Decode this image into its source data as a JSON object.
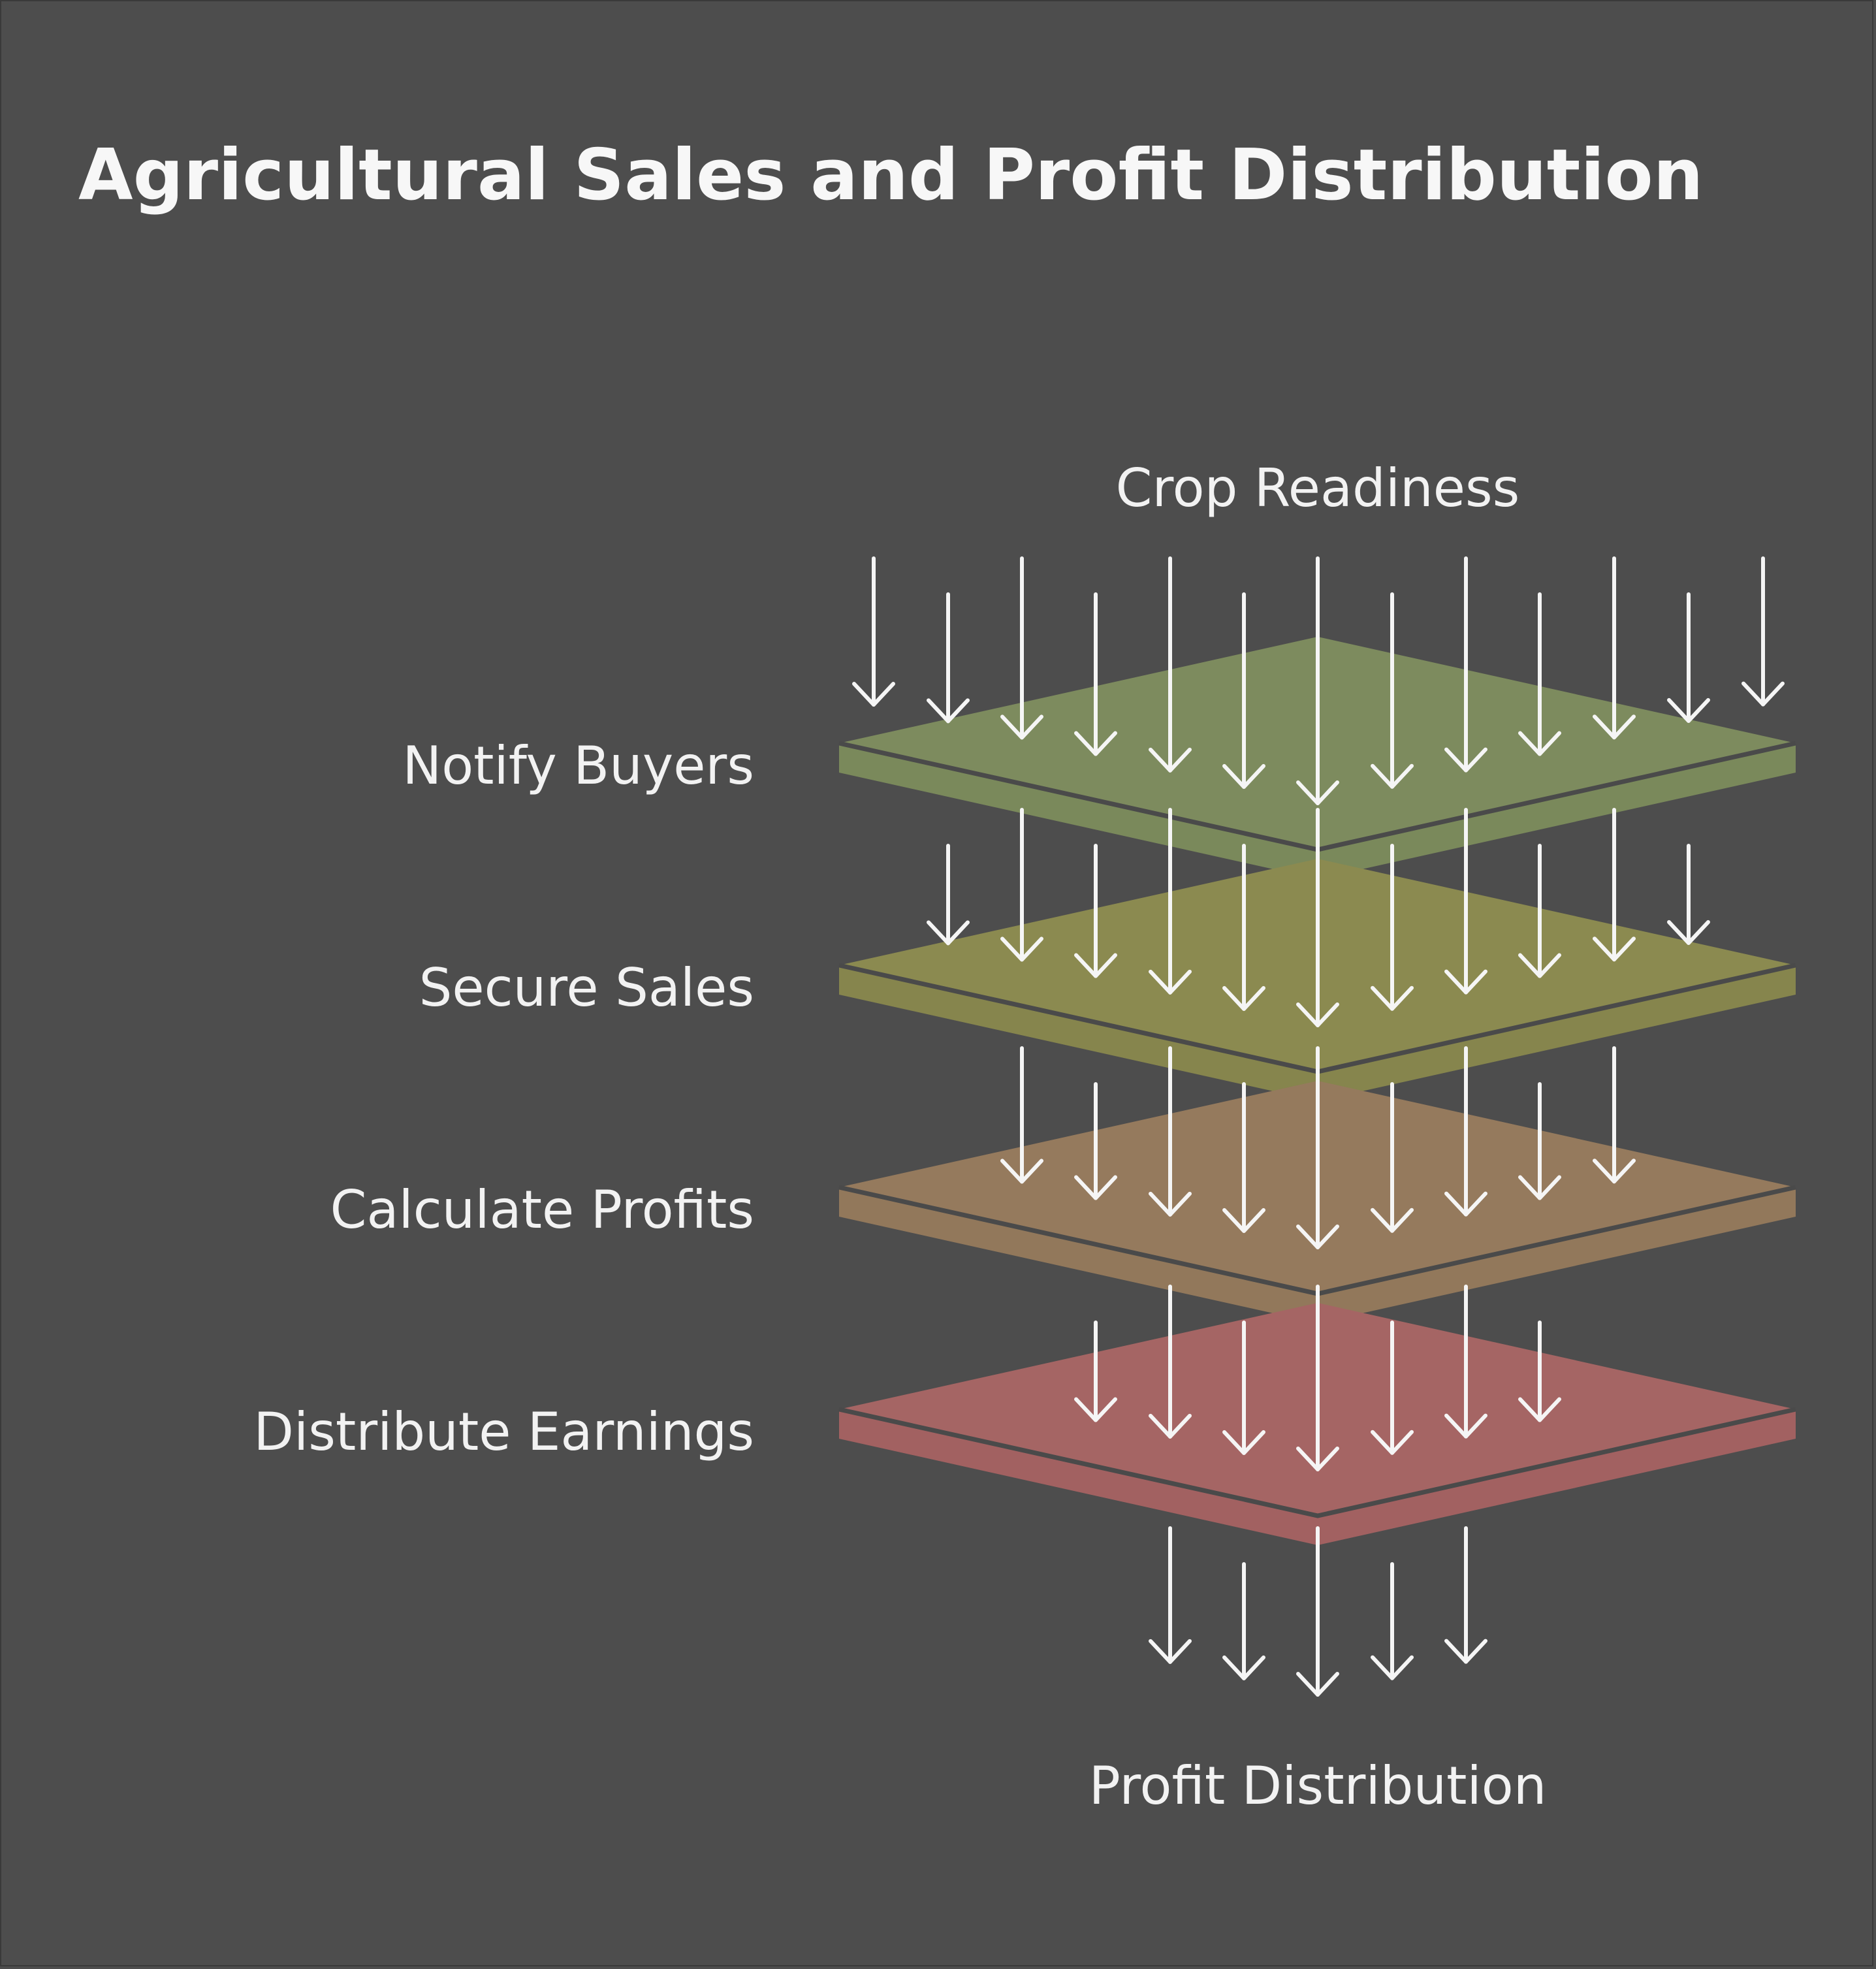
{
  "title": "Agricultural Sales and Profit Distribution",
  "input_label": "Crop Readiness",
  "output_label": "Profit Distribution",
  "layers": [
    {
      "label": "Notify Buyers",
      "color": "#7d8b5e",
      "edge_color": "#7a895b"
    },
    {
      "label": "Secure Sales",
      "color": "#8b8a50",
      "edge_color": "#86854d"
    },
    {
      "label": "Calculate Profits",
      "color": "#957a5d",
      "edge_color": "#92785b"
    },
    {
      "label": "Distribute Earnings",
      "color": "#a56564",
      "edge_color": "#a26161"
    }
  ],
  "colors": {
    "background": "#4d4d4d",
    "text": "#f2f2f2",
    "arrow": "#f5f5f5"
  }
}
